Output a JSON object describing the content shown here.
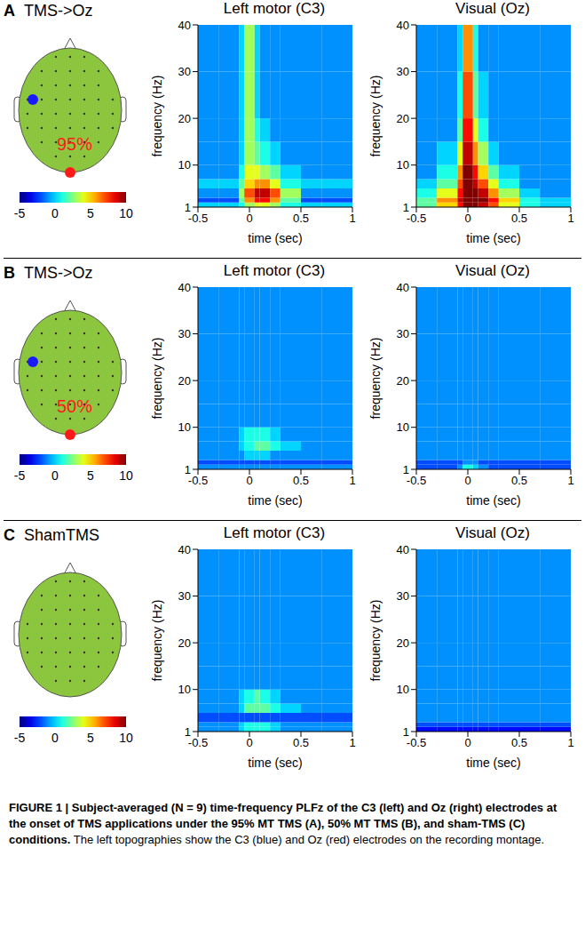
{
  "panels": [
    {
      "letter": "A",
      "title": "TMS->Oz",
      "intensity": "95%"
    },
    {
      "letter": "B",
      "title": "TMS->Oz",
      "intensity": "50%"
    },
    {
      "letter": "C",
      "title": "ShamTMS"
    }
  ],
  "colorbar": {
    "range": [
      -5,
      10
    ],
    "ticks": [
      -5,
      0,
      5,
      10
    ]
  },
  "chart_data": [
    {
      "type": "heatmap",
      "title": "Left motor (C3)",
      "x_label": "time (sec)",
      "y_label": "frequency (Hz)",
      "xlim": [
        -0.5,
        1
      ],
      "xticks": [
        -0.5,
        0,
        0.5,
        1
      ],
      "ylim": [
        1,
        40
      ],
      "yticks": [
        1,
        10,
        20,
        30,
        40
      ],
      "x_edges": [
        -0.5,
        -0.3,
        -0.1,
        -0.05,
        0.05,
        0.1,
        0.2,
        0.3,
        0.5,
        0.7,
        1.0
      ],
      "y_edges": [
        1,
        2,
        3,
        5,
        7,
        10,
        15,
        20,
        30,
        40
      ],
      "z": [
        [
          0,
          0,
          1,
          3,
          4,
          4,
          3,
          1,
          0,
          0
        ],
        [
          -2,
          -2,
          2,
          6,
          8,
          8,
          6,
          2,
          -2,
          -2
        ],
        [
          -1,
          -1,
          3,
          7,
          9,
          9,
          7,
          3,
          -1,
          -1
        ],
        [
          0,
          0,
          2,
          5,
          6,
          6,
          4,
          1,
          0,
          0
        ],
        [
          -1,
          -1,
          1,
          4,
          4,
          3,
          2,
          0,
          -1,
          -1
        ],
        [
          -1,
          -1,
          0,
          3,
          2,
          1,
          0,
          -1,
          -1,
          -1
        ],
        [
          -1,
          -1,
          0,
          3,
          1,
          0,
          -1,
          -1,
          -1,
          -1
        ],
        [
          -1,
          -1,
          0,
          3,
          0,
          -1,
          -1,
          -1,
          -1,
          -1
        ],
        [
          -1,
          -1,
          0,
          3,
          0,
          -1,
          -1,
          -1,
          -1,
          -1
        ]
      ]
    },
    {
      "type": "heatmap",
      "title": "Visual (Oz)",
      "x_label": "time (sec)",
      "y_label": "frequency (Hz)",
      "xlim": [
        -0.5,
        1
      ],
      "xticks": [
        -0.5,
        0,
        0.5,
        1
      ],
      "ylim": [
        1,
        40
      ],
      "yticks": [
        1,
        10,
        20,
        30,
        40
      ],
      "x_edges": [
        -0.5,
        -0.3,
        -0.1,
        -0.05,
        0.05,
        0.1,
        0.2,
        0.3,
        0.5,
        0.7,
        1.0
      ],
      "y_edges": [
        1,
        2,
        3,
        5,
        7,
        10,
        15,
        20,
        30,
        40
      ],
      "z": [
        [
          2,
          5,
          8,
          10,
          10,
          9,
          7,
          4,
          1,
          0
        ],
        [
          2,
          6,
          9,
          10,
          10,
          10,
          8,
          5,
          1,
          0
        ],
        [
          1,
          4,
          8,
          10,
          10,
          9,
          6,
          3,
          0,
          -1
        ],
        [
          0,
          2,
          7,
          10,
          9,
          7,
          4,
          1,
          -1,
          -1
        ],
        [
          -1,
          1,
          6,
          10,
          8,
          5,
          2,
          0,
          -1,
          -1
        ],
        [
          -1,
          0,
          4,
          9,
          6,
          3,
          0,
          -1,
          -1,
          -1
        ],
        [
          -1,
          -1,
          2,
          8,
          4,
          1,
          -1,
          -1,
          -1,
          -1
        ],
        [
          -1,
          -1,
          1,
          7,
          2,
          0,
          -1,
          -1,
          -1,
          -1
        ],
        [
          -1,
          -1,
          0,
          6,
          1,
          -1,
          -1,
          -1,
          -1,
          -1
        ]
      ]
    },
    {
      "type": "heatmap",
      "title": "Left motor (C3)",
      "x_label": "time (sec)",
      "y_label": "frequency (Hz)",
      "xlim": [
        -0.5,
        1
      ],
      "xticks": [
        -0.5,
        0,
        0.5,
        1
      ],
      "ylim": [
        1,
        40
      ],
      "yticks": [
        1,
        10,
        20,
        30,
        40
      ],
      "x_edges": [
        -0.5,
        -0.3,
        -0.1,
        -0.05,
        0.05,
        0.1,
        0.2,
        0.3,
        0.5,
        0.7,
        1.0
      ],
      "y_edges": [
        1,
        2,
        3,
        5,
        7,
        10,
        15,
        20,
        30,
        40
      ],
      "z": [
        [
          -1,
          -1,
          -1,
          -1,
          -1,
          -1,
          -1,
          -1,
          -1,
          -1
        ],
        [
          -2,
          -2,
          -2,
          -2,
          -2,
          -2,
          -2,
          -2,
          -2,
          -2
        ],
        [
          -1,
          -1,
          -1,
          0,
          0,
          0,
          -1,
          -1,
          -1,
          -1
        ],
        [
          -1,
          -1,
          0,
          1,
          2,
          2,
          1,
          0,
          -1,
          -1
        ],
        [
          -1,
          -1,
          0,
          1,
          1,
          1,
          0,
          -1,
          -1,
          -1
        ],
        [
          -1,
          -1,
          -1,
          -1,
          -1,
          -1,
          -1,
          -1,
          -1,
          -1
        ],
        [
          -1,
          -1,
          -1,
          -1,
          -1,
          -1,
          -1,
          -1,
          -1,
          -1
        ],
        [
          -1,
          -1,
          -1,
          -1,
          -1,
          -1,
          -1,
          -1,
          -1,
          -1
        ],
        [
          -1,
          -1,
          -1,
          -1,
          -1,
          -1,
          -1,
          -1,
          -1,
          -1
        ]
      ]
    },
    {
      "type": "heatmap",
      "title": "Visual (Oz)",
      "x_label": "time (sec)",
      "y_label": "frequency (Hz)",
      "xlim": [
        -0.5,
        1
      ],
      "xticks": [
        -0.5,
        0,
        0.5,
        1
      ],
      "ylim": [
        1,
        40
      ],
      "yticks": [
        1,
        10,
        20,
        30,
        40
      ],
      "x_edges": [
        -0.5,
        -0.3,
        -0.1,
        -0.05,
        0.05,
        0.1,
        0.2,
        0.3,
        0.5,
        0.7,
        1.0
      ],
      "y_edges": [
        1,
        2,
        3,
        5,
        7,
        10,
        15,
        20,
        30,
        40
      ],
      "z": [
        [
          -2,
          -2,
          -1,
          1,
          0,
          -1,
          -2,
          -2,
          -2,
          -2
        ],
        [
          -2,
          -2,
          -2,
          -1,
          -1,
          -2,
          -2,
          -2,
          -2,
          -2
        ],
        [
          -1,
          -1,
          -1,
          -1,
          -1,
          -1,
          -1,
          -1,
          -1,
          -1
        ],
        [
          -1,
          -1,
          -1,
          -1,
          -1,
          -1,
          -1,
          -1,
          -1,
          -1
        ],
        [
          -1,
          -1,
          -1,
          -1,
          -1,
          -1,
          -1,
          -1,
          -1,
          -1
        ],
        [
          -1,
          -1,
          -1,
          -1,
          -1,
          -1,
          -1,
          -1,
          -1,
          -1
        ],
        [
          -1,
          -1,
          -1,
          -1,
          -1,
          -1,
          -1,
          -1,
          -1,
          -1
        ],
        [
          -1,
          -1,
          -1,
          -1,
          -1,
          -1,
          -1,
          -1,
          -1,
          -1
        ],
        [
          -1,
          -1,
          -1,
          -1,
          -1,
          -1,
          -1,
          -1,
          -1,
          -1
        ]
      ]
    },
    {
      "type": "heatmap",
      "title": "Left motor (C3)",
      "x_label": "time (sec)",
      "y_label": "frequency (Hz)",
      "xlim": [
        -0.5,
        1
      ],
      "xticks": [
        -0.5,
        0,
        0.5,
        1
      ],
      "ylim": [
        1,
        40
      ],
      "yticks": [
        1,
        10,
        20,
        30,
        40
      ],
      "x_edges": [
        -0.5,
        -0.3,
        -0.1,
        -0.05,
        0.05,
        0.1,
        0.2,
        0.3,
        0.5,
        0.7,
        1.0
      ],
      "y_edges": [
        1,
        2,
        3,
        5,
        7,
        10,
        15,
        20,
        30,
        40
      ],
      "z": [
        [
          -1,
          -1,
          0,
          1,
          1,
          1,
          0,
          -1,
          -1,
          -1
        ],
        [
          -1,
          -1,
          0,
          1,
          1,
          1,
          0,
          -1,
          -1,
          -1
        ],
        [
          -2,
          -2,
          -2,
          -2,
          -2,
          -2,
          -2,
          -2,
          -2,
          -2
        ],
        [
          -1,
          -1,
          0,
          2,
          2,
          2,
          1,
          0,
          -1,
          -1
        ],
        [
          -1,
          -1,
          0,
          1,
          2,
          1,
          0,
          -1,
          -1,
          -1
        ],
        [
          -1,
          -1,
          -1,
          -1,
          -1,
          -1,
          -1,
          -1,
          -1,
          -1
        ],
        [
          -1,
          -1,
          -1,
          -1,
          -1,
          -1,
          -1,
          -1,
          -1,
          -1
        ],
        [
          -1,
          -1,
          -1,
          -1,
          -1,
          -1,
          -1,
          -1,
          -1,
          -1
        ],
        [
          -1,
          -1,
          -1,
          -1,
          -1,
          -1,
          -1,
          -1,
          -1,
          -1
        ]
      ]
    },
    {
      "type": "heatmap",
      "title": "Visual (Oz)",
      "x_label": "time (sec)",
      "y_label": "frequency (Hz)",
      "xlim": [
        -0.5,
        1
      ],
      "xticks": [
        -0.5,
        0,
        0.5,
        1
      ],
      "ylim": [
        1,
        40
      ],
      "yticks": [
        1,
        10,
        20,
        30,
        40
      ],
      "x_edges": [
        -0.5,
        -0.3,
        -0.1,
        -0.05,
        0.05,
        0.1,
        0.2,
        0.3,
        0.5,
        0.7,
        1.0
      ],
      "y_edges": [
        1,
        2,
        3,
        5,
        7,
        10,
        15,
        20,
        30,
        40
      ],
      "z": [
        [
          -3,
          -3,
          -3,
          -3,
          -3,
          -3,
          -3,
          -3,
          -3,
          -3
        ],
        [
          -2,
          -2,
          -2,
          -2,
          -2,
          -2,
          -2,
          -2,
          -2,
          -2
        ],
        [
          -1,
          -1,
          -1,
          -1,
          -1,
          -1,
          -1,
          -1,
          -1,
          -1
        ],
        [
          -1,
          -1,
          -1,
          -1,
          -1,
          -1,
          -1,
          -1,
          -1,
          -1
        ],
        [
          -1,
          -1,
          -1,
          -1,
          -1,
          -1,
          -1,
          -1,
          -1,
          -1
        ],
        [
          -1,
          -1,
          -1,
          -1,
          -1,
          -1,
          -1,
          -1,
          -1,
          -1
        ],
        [
          -1,
          -1,
          -1,
          -1,
          -1,
          -1,
          -1,
          -1,
          -1,
          -1
        ],
        [
          -1,
          -1,
          -1,
          -1,
          -1,
          -1,
          -1,
          -1,
          -1,
          -1
        ],
        [
          -1,
          -1,
          -1,
          -1,
          -1,
          -1,
          -1,
          -1,
          -1,
          -1
        ]
      ]
    }
  ],
  "caption": {
    "bold": "FIGURE 1 | Subject-averaged (N = 9) time-frequency PLFz of the C3 (left) and Oz (right) electrodes at the onset of TMS applications under the 95% MT TMS (A), 50% MT TMS (B), and sham-TMS (C) conditions.",
    "text": "The left topographies show the C3 (blue) and Oz (red) electrodes on the recording montage."
  }
}
